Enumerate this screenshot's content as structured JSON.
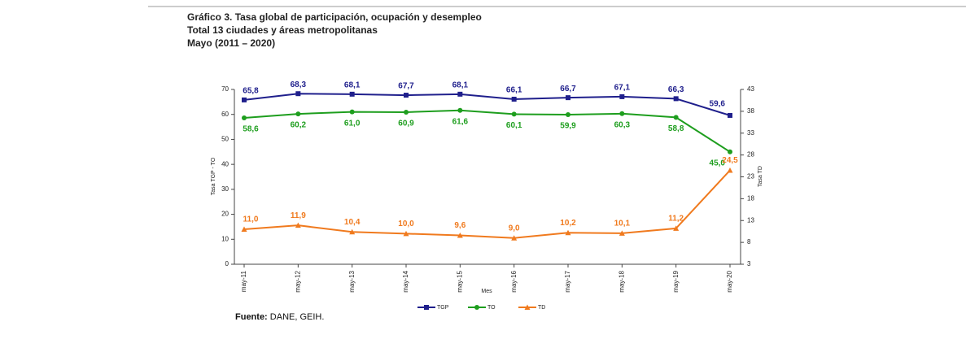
{
  "header": {
    "lines": [
      "Gráfico 3. Tasa global de participación, ocupación y desempleo",
      "Total 13 ciudades y áreas metropolitanas",
      "Mayo (2011 – 2020)"
    ]
  },
  "chart_data": {
    "type": "line",
    "ylabel": "Tasa TGP - TO",
    "y2label": "Tasa TD",
    "xlabel": "Mes",
    "categories": [
      "may-11",
      "may-12",
      "may-13",
      "may-14",
      "may-15",
      "may-16",
      "may-17",
      "may-18",
      "may-19",
      "may-20"
    ],
    "series": [
      {
        "name": "TGP",
        "color": "#1f1f8c",
        "values": [
          65.8,
          68.3,
          68.1,
          67.7,
          68.1,
          66.1,
          66.7,
          67.1,
          66.3,
          59.6
        ],
        "value_labels": [
          "65,8",
          "68,3",
          "68,1",
          "67,7",
          "68,1",
          "66,1",
          "66,7",
          "67,1",
          "66,3",
          "59,6"
        ]
      },
      {
        "name": "TO",
        "color": "#1e9e1e",
        "values": [
          58.6,
          60.2,
          61.0,
          60.9,
          61.6,
          60.1,
          59.9,
          60.3,
          58.8,
          45.0
        ],
        "value_labels": [
          "58,6",
          "60,2",
          "61,0",
          "60,9",
          "61,6",
          "60,1",
          "59,9",
          "60,3",
          "58,8",
          "45,0"
        ]
      },
      {
        "name": "TD",
        "color": "#f07a1e",
        "axis": "y2",
        "values": [
          11.0,
          11.9,
          10.4,
          10.0,
          9.6,
          9.0,
          10.2,
          10.1,
          11.2,
          24.5
        ],
        "value_labels": [
          "11,0",
          "11,9",
          "10,4",
          "10,0",
          "9,6",
          "9,0",
          "10,2",
          "10,1",
          "11,2",
          "24,5"
        ]
      }
    ],
    "ylim": [
      0,
      70
    ],
    "yticks": [
      0,
      10,
      20,
      30,
      40,
      50,
      60,
      70
    ],
    "y2lim": [
      3,
      43
    ],
    "y2ticks": [
      3,
      8,
      13,
      18,
      23,
      28,
      33,
      38,
      43
    ],
    "grid": false,
    "legend": "bottom"
  },
  "source": {
    "label": "Fuente:",
    "text": "DANE, GEIH."
  }
}
